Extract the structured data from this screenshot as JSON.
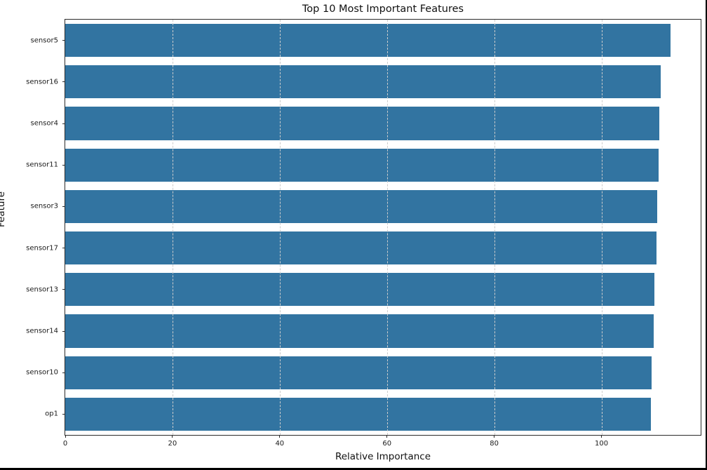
{
  "chart_data": {
    "type": "bar",
    "orientation": "horizontal",
    "title": "Top 10 Most Important Features",
    "xlabel": "Relative Importance",
    "ylabel": "Feature",
    "categories": [
      "sensor5",
      "sensor16",
      "sensor4",
      "sensor11",
      "sensor3",
      "sensor17",
      "sensor13",
      "sensor14",
      "sensor10",
      "op1"
    ],
    "values": [
      112.9,
      111.1,
      110.8,
      110.6,
      110.4,
      110.3,
      109.9,
      109.8,
      109.3,
      109.2
    ],
    "x_ticks": [
      0,
      20,
      40,
      60,
      80,
      100
    ],
    "xlim": [
      0,
      118.5
    ],
    "grid": "x-axis dashed, drawn above bars",
    "legend": "none",
    "colors": {
      "bar": "#3274a1",
      "gridline": "#cccccc",
      "spine": "#2b2b2b",
      "text": "#111111"
    }
  }
}
